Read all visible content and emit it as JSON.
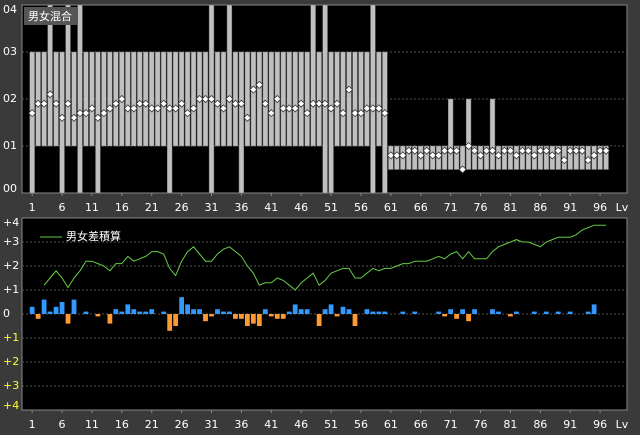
{
  "chart_data": [
    {
      "type": "range",
      "title": "男女混合",
      "x_label": "Lv",
      "x": [
        1,
        2,
        3,
        4,
        5,
        6,
        7,
        8,
        9,
        10,
        11,
        12,
        13,
        14,
        15,
        16,
        17,
        18,
        19,
        20,
        21,
        22,
        23,
        24,
        25,
        26,
        27,
        28,
        29,
        30,
        31,
        32,
        33,
        34,
        35,
        36,
        37,
        38,
        39,
        40,
        41,
        42,
        43,
        44,
        45,
        46,
        47,
        48,
        49,
        50,
        51,
        52,
        53,
        54,
        55,
        56,
        57,
        58,
        59,
        60,
        61,
        62,
        63,
        64,
        65,
        66,
        67,
        68,
        69,
        70,
        71,
        72,
        73,
        74,
        75,
        76,
        77,
        78,
        79,
        80,
        81,
        82,
        83,
        84,
        85,
        86,
        87,
        88,
        89,
        90,
        91,
        92,
        93,
        94,
        95,
        96,
        97
      ],
      "low": [
        0,
        1,
        1,
        1,
        1,
        0,
        1,
        1,
        0,
        1,
        1,
        0,
        1,
        1,
        1,
        1,
        1,
        1,
        1,
        1,
        1,
        1,
        1,
        0,
        1,
        1,
        1,
        1,
        1,
        1,
        0,
        1,
        1,
        1,
        1,
        0,
        1,
        1,
        1,
        1,
        1,
        1,
        1,
        1,
        1,
        1,
        1,
        1,
        1,
        0,
        0,
        1,
        1,
        1,
        1,
        1,
        1,
        0,
        1,
        0,
        0.5,
        0.5,
        0.5,
        0.5,
        0.5,
        0.5,
        0.5,
        0.5,
        0.5,
        0.5,
        0.5,
        0.5,
        0.5,
        0.5,
        0.5,
        0.5,
        0.5,
        0.5,
        0.5,
        0.5,
        0.5,
        0.5,
        0.5,
        0.5,
        0.5,
        0.5,
        0.5,
        0.5,
        0.5,
        0.5,
        0.5,
        0.5,
        0.5,
        0.5,
        0.5,
        0.5,
        0.5
      ],
      "high": [
        3,
        3,
        3,
        4,
        3,
        3,
        4,
        3,
        4,
        3,
        3,
        3,
        3,
        3,
        3,
        3,
        3,
        3,
        3,
        3,
        3,
        3,
        3,
        3,
        3,
        3,
        3,
        3,
        3,
        3,
        4,
        3,
        3,
        4,
        3,
        3,
        3,
        3,
        3,
        3,
        3,
        3,
        3,
        3,
        3,
        3,
        3,
        4,
        3,
        4,
        3,
        3,
        3,
        3,
        3,
        3,
        3,
        4,
        3,
        3,
        1,
        1,
        1,
        1,
        1,
        1,
        1,
        1,
        1,
        1,
        2,
        1,
        1,
        2,
        1,
        1,
        1,
        2,
        1,
        1,
        1,
        1,
        1,
        1,
        1,
        1,
        1,
        1,
        1,
        1,
        1,
        1,
        1,
        1,
        1,
        1,
        1
      ],
      "values": [
        1.7,
        1.9,
        1.9,
        2.1,
        1.9,
        1.6,
        1.9,
        1.6,
        1.7,
        1.7,
        1.8,
        1.6,
        1.7,
        1.8,
        1.9,
        2.0,
        1.8,
        1.8,
        1.9,
        1.9,
        1.8,
        1.8,
        1.9,
        1.8,
        1.8,
        1.9,
        1.7,
        1.8,
        2.0,
        2.0,
        2.0,
        1.9,
        1.8,
        2.0,
        1.9,
        1.9,
        1.6,
        2.2,
        2.3,
        1.9,
        1.7,
        2.0,
        1.8,
        1.8,
        1.8,
        1.9,
        1.7,
        1.9,
        1.9,
        1.9,
        1.8,
        1.9,
        1.7,
        2.2,
        1.7,
        1.7,
        1.8,
        1.8,
        1.8,
        1.7,
        0.8,
        0.8,
        0.8,
        0.9,
        0.9,
        0.8,
        0.9,
        0.8,
        0.8,
        0.9,
        0.9,
        0.9,
        0.5,
        1.0,
        0.9,
        0.8,
        0.9,
        0.9,
        0.8,
        0.9,
        0.9,
        0.8,
        0.9,
        0.9,
        0.8,
        0.9,
        0.9,
        0.8,
        0.9,
        0.7,
        0.9,
        0.9,
        0.9,
        0.7,
        0.8,
        0.9,
        0.9
      ],
      "bar_color": "#c0c0c0",
      "marker_color": "#ffffff",
      "xlim": [
        -0.7,
        100.5
      ],
      "xticks": [
        1,
        6,
        11,
        16,
        21,
        26,
        31,
        36,
        41,
        46,
        51,
        56,
        61,
        66,
        71,
        76,
        81,
        86,
        91,
        96
      ],
      "ylim": [
        0,
        4
      ],
      "yticks": [
        {
          "value": 0,
          "label": "00"
        },
        {
          "value": 1,
          "label": "01"
        },
        {
          "value": 2,
          "label": "02"
        },
        {
          "value": 3,
          "label": "03"
        },
        {
          "value": 4,
          "label": "04"
        }
      ],
      "grid": true
    },
    {
      "type": "diff",
      "x_label": "Lv",
      "x": [
        1,
        2,
        3,
        4,
        5,
        6,
        7,
        8,
        9,
        10,
        11,
        12,
        13,
        14,
        15,
        16,
        17,
        18,
        19,
        20,
        21,
        22,
        23,
        24,
        25,
        26,
        27,
        28,
        29,
        30,
        31,
        32,
        33,
        34,
        35,
        36,
        37,
        38,
        39,
        40,
        41,
        42,
        43,
        44,
        45,
        46,
        47,
        48,
        49,
        50,
        51,
        52,
        53,
        54,
        55,
        56,
        57,
        58,
        59,
        60,
        61,
        62,
        63,
        64,
        65,
        66,
        67,
        68,
        69,
        70,
        71,
        72,
        73,
        74,
        75,
        76,
        77,
        78,
        79,
        80,
        81,
        82,
        83,
        84,
        85,
        86,
        87,
        88,
        89,
        90,
        91,
        92,
        93,
        94,
        95,
        96,
        97
      ],
      "values": [
        0.3,
        -0.2,
        0.6,
        0.1,
        0.3,
        0.5,
        -0.4,
        0.6,
        0,
        0.1,
        0,
        -0.1,
        0,
        -0.4,
        0.2,
        0.1,
        0.4,
        0.2,
        0.1,
        0.1,
        0.2,
        0,
        0.1,
        -0.7,
        -0.5,
        0.7,
        0.4,
        0.2,
        0.2,
        -0.3,
        -0.1,
        0.2,
        0.1,
        0.1,
        -0.2,
        -0.2,
        -0.5,
        -0.4,
        -0.5,
        0.2,
        -0.1,
        -0.2,
        -0.2,
        0.1,
        0.4,
        0.2,
        0.2,
        0,
        -0.5,
        0.2,
        0.4,
        -0.1,
        0.3,
        0.2,
        -0.5,
        0,
        0.2,
        0.1,
        0.1,
        0.1,
        0,
        0,
        0.1,
        0,
        0.1,
        0,
        0,
        0,
        0.1,
        -0.1,
        0.2,
        -0.2,
        0.2,
        -0.3,
        0.2,
        0,
        0,
        0.2,
        0.1,
        0,
        -0.1,
        0.1,
        0,
        0,
        0.1,
        0,
        0.1,
        0,
        0.1,
        0,
        0.1,
        0,
        0,
        0.1,
        0.4,
        0,
        0
      ],
      "pos_color": "#3399ff",
      "neg_color": "#ff9933",
      "series": [
        {
          "name": "男女差積算",
          "color": "#66cc44",
          "values": [
            null,
            null,
            1.2,
            1.5,
            1.8,
            1.5,
            1.1,
            1.5,
            1.8,
            2.2,
            2.2,
            2.1,
            2.0,
            1.8,
            2.1,
            2.1,
            2.4,
            2.2,
            2.3,
            2.4,
            2.6,
            2.6,
            2.5,
            1.9,
            1.6,
            2.2,
            2.6,
            2.8,
            2.5,
            2.2,
            2.2,
            2.5,
            2.7,
            2.8,
            2.6,
            2.4,
            2.0,
            1.7,
            1.2,
            1.3,
            1.3,
            1.5,
            1.4,
            1.2,
            1.0,
            1.3,
            1.5,
            1.7,
            1.2,
            1.4,
            1.7,
            1.8,
            1.9,
            1.9,
            1.5,
            1.5,
            1.7,
            1.9,
            1.8,
            1.9,
            1.9,
            2.0,
            2.1,
            2.1,
            2.2,
            2.2,
            2.2,
            2.3,
            2.4,
            2.3,
            2.5,
            2.6,
            2.3,
            2.6,
            2.3,
            2.3,
            2.3,
            2.6,
            2.8,
            2.9,
            3.0,
            3.1,
            3.0,
            3.0,
            2.9,
            2.8,
            3.0,
            3.1,
            3.2,
            3.2,
            3.2,
            3.3,
            3.5,
            3.6,
            3.7,
            3.7,
            3.7
          ]
        }
      ],
      "xlim": [
        -0.7,
        100.5
      ],
      "xticks": [
        1,
        6,
        11,
        16,
        21,
        26,
        31,
        36,
        41,
        46,
        51,
        56,
        61,
        66,
        71,
        76,
        81,
        86,
        91,
        96
      ],
      "ylim": [
        -4,
        4
      ],
      "yticks": [
        {
          "value": 4,
          "label": "+4"
        },
        {
          "value": 3,
          "label": "+3"
        },
        {
          "value": 2,
          "label": "+2"
        },
        {
          "value": 1,
          "label": "+1"
        },
        0,
        {
          "value": -1,
          "label": "+1"
        },
        {
          "value": -2,
          "label": "+2"
        },
        {
          "value": -3,
          "label": "+3"
        },
        {
          "value": -4,
          "label": "+4"
        }
      ],
      "grid": true
    }
  ]
}
